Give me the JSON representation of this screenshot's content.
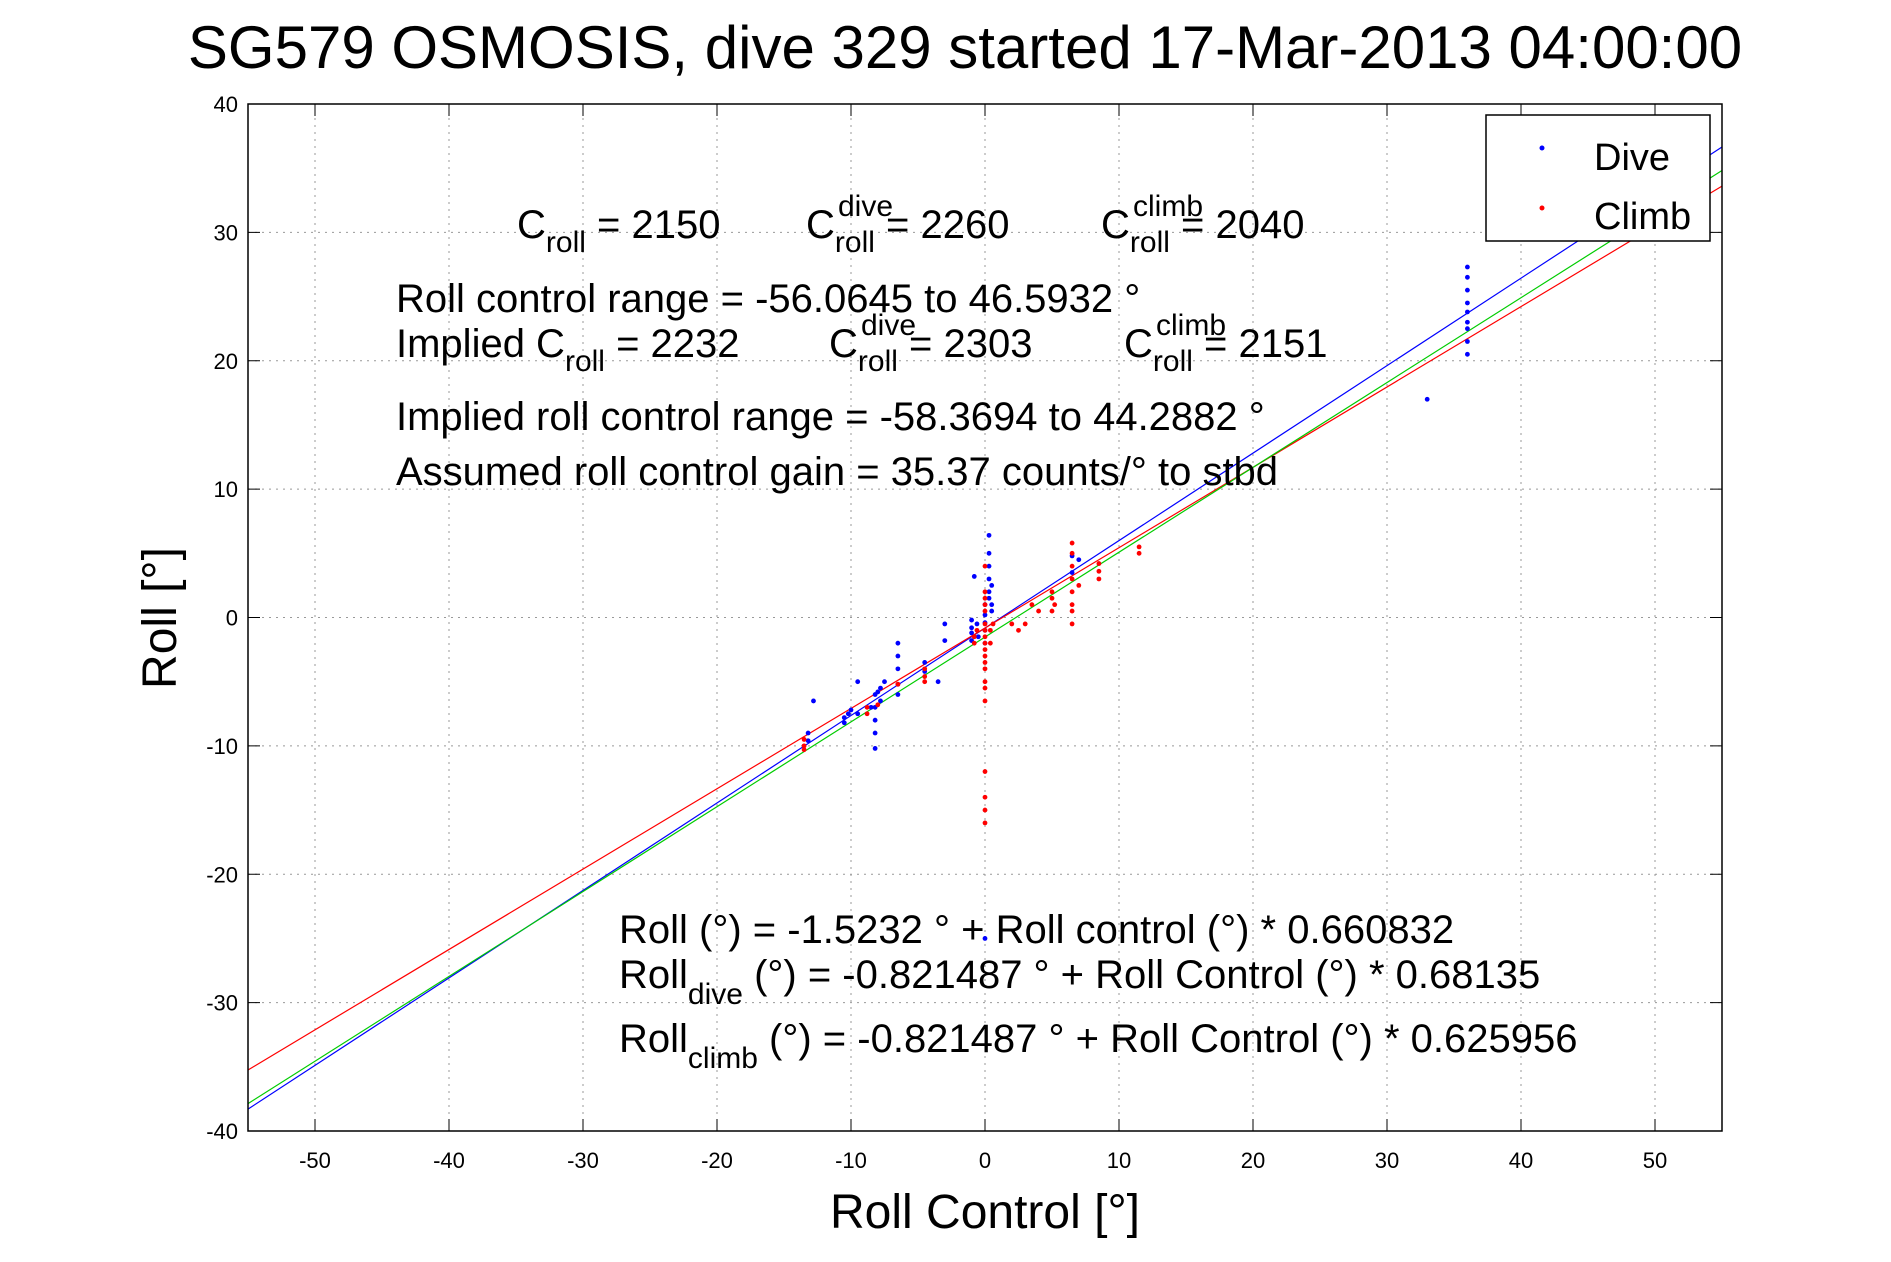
{
  "chart_data": {
    "type": "scatter",
    "title": "SG579 OSMOSIS, dive 329 started 17-Mar-2013 04:00:00",
    "xlabel": "Roll Control [°]",
    "ylabel": "Roll [°]",
    "xlim": [
      -55,
      55
    ],
    "ylim": [
      -40,
      40
    ],
    "xticks": [
      "-50",
      "-40",
      "-30",
      "-20",
      "-10",
      "0",
      "10",
      "20",
      "30",
      "40",
      "50"
    ],
    "yticks": [
      "-40",
      "-30",
      "-20",
      "-10",
      "0",
      "10",
      "20",
      "30",
      "40"
    ],
    "grid": true,
    "legend": {
      "placement": "top-right",
      "entries": [
        "Dive",
        "Climb"
      ]
    },
    "colors": {
      "dive": "#0000ff",
      "climb": "#ff0000",
      "fit_all": "#00cc00"
    },
    "series": [
      {
        "name": "Dive",
        "color": "#0000ff",
        "points": [
          [
            -13.2,
            -9.0
          ],
          [
            -13.2,
            -9.6
          ],
          [
            -12.8,
            -6.5
          ],
          [
            -10.5,
            -7.8
          ],
          [
            -10.5,
            -8.2
          ],
          [
            -10.2,
            -7.5
          ],
          [
            -10.0,
            -7.2
          ],
          [
            -9.5,
            -5.0
          ],
          [
            -9.5,
            -7.5
          ],
          [
            -8.5,
            -7.0
          ],
          [
            -8.2,
            -6.0
          ],
          [
            -8.2,
            -7.0
          ],
          [
            -8.2,
            -8.0
          ],
          [
            -8.2,
            -9.0
          ],
          [
            -8.2,
            -10.2
          ],
          [
            -8.0,
            -5.8
          ],
          [
            -7.8,
            -5.5
          ],
          [
            -7.8,
            -6.5
          ],
          [
            -7.5,
            -5.0
          ],
          [
            -6.5,
            -2.0
          ],
          [
            -6.5,
            -3.0
          ],
          [
            -6.5,
            -4.0
          ],
          [
            -6.5,
            -5.2
          ],
          [
            -6.5,
            -6.0
          ],
          [
            -4.5,
            -3.5
          ],
          [
            -4.5,
            -4.2
          ],
          [
            -3.5,
            -5.0
          ],
          [
            -3.0,
            -0.5
          ],
          [
            -3.0,
            -1.8
          ],
          [
            -1.0,
            -0.2
          ],
          [
            -1.0,
            -0.8
          ],
          [
            -1.0,
            -1.2
          ],
          [
            -1.0,
            -1.8
          ],
          [
            -0.8,
            3.2
          ],
          [
            -0.6,
            -0.5
          ],
          [
            -0.5,
            -1.5
          ],
          [
            0.0,
            1.0
          ],
          [
            0.0,
            0.2
          ],
          [
            0.0,
            -0.4
          ],
          [
            0.0,
            -1.0
          ],
          [
            0.0,
            -2.0
          ],
          [
            0.0,
            -25.0
          ],
          [
            0.3,
            6.4
          ],
          [
            0.3,
            5.0
          ],
          [
            0.3,
            4.0
          ],
          [
            0.3,
            3.0
          ],
          [
            0.3,
            2.0
          ],
          [
            0.3,
            1.5
          ],
          [
            0.5,
            1.0
          ],
          [
            0.5,
            0.5
          ],
          [
            0.5,
            2.5
          ],
          [
            6.5,
            3.5
          ],
          [
            6.5,
            4.8
          ],
          [
            7.0,
            4.5
          ],
          [
            33.0,
            17.0
          ],
          [
            36.0,
            20.5
          ],
          [
            36.0,
            21.5
          ],
          [
            36.0,
            22.5
          ],
          [
            36.0,
            23.0
          ],
          [
            36.0,
            23.8
          ],
          [
            36.0,
            24.5
          ],
          [
            36.0,
            25.5
          ],
          [
            36.0,
            26.5
          ],
          [
            36.0,
            27.3
          ]
        ]
      },
      {
        "name": "Climb",
        "color": "#ff0000",
        "points": [
          [
            -13.5,
            -10.3
          ],
          [
            -13.5,
            -10.0
          ],
          [
            -13.5,
            -9.5
          ],
          [
            -8.8,
            -7.0
          ],
          [
            -8.8,
            -7.5
          ],
          [
            -8.0,
            -6.8
          ],
          [
            -6.5,
            -5.2
          ],
          [
            -4.5,
            -4.6
          ],
          [
            -4.5,
            -5.0
          ],
          [
            -4.5,
            -4.0
          ],
          [
            -0.8,
            -1.5
          ],
          [
            -0.8,
            -2.0
          ],
          [
            -0.6,
            -1.0
          ],
          [
            0.0,
            4.0
          ],
          [
            0.0,
            2.0
          ],
          [
            0.0,
            1.5
          ],
          [
            0.0,
            1.0
          ],
          [
            0.0,
            0.5
          ],
          [
            0.0,
            -0.5
          ],
          [
            0.0,
            -1.0
          ],
          [
            0.0,
            -1.5
          ],
          [
            0.0,
            -2.0
          ],
          [
            0.0,
            -2.5
          ],
          [
            0.0,
            -3.0
          ],
          [
            0.0,
            -3.5
          ],
          [
            0.0,
            -4.0
          ],
          [
            0.0,
            -5.0
          ],
          [
            0.0,
            -5.5
          ],
          [
            0.0,
            -6.5
          ],
          [
            0.0,
            -12.0
          ],
          [
            0.0,
            -14.0
          ],
          [
            0.0,
            -15.0
          ],
          [
            0.0,
            -16.0
          ],
          [
            0.4,
            -1.0
          ],
          [
            0.4,
            -2.0
          ],
          [
            0.6,
            -0.5
          ],
          [
            2.0,
            -0.5
          ],
          [
            2.5,
            -1.0
          ],
          [
            3.0,
            -0.5
          ],
          [
            3.5,
            1.0
          ],
          [
            4.0,
            0.5
          ],
          [
            5.0,
            0.5
          ],
          [
            5.0,
            1.5
          ],
          [
            5.0,
            2.0
          ],
          [
            5.2,
            1.0
          ],
          [
            6.5,
            5.8
          ],
          [
            6.5,
            5.0
          ],
          [
            6.5,
            4.0
          ],
          [
            6.5,
            3.0
          ],
          [
            6.5,
            2.0
          ],
          [
            6.5,
            1.0
          ],
          [
            6.5,
            0.5
          ],
          [
            6.5,
            -0.5
          ],
          [
            7.0,
            2.5
          ],
          [
            8.5,
            3.0
          ],
          [
            8.5,
            3.6
          ],
          [
            8.5,
            4.2
          ],
          [
            11.5,
            5.0
          ],
          [
            11.5,
            5.5
          ]
        ]
      }
    ],
    "fit_lines": [
      {
        "color": "#0000ff",
        "intercept": -0.821487,
        "slope": 0.68135
      },
      {
        "color": "#ff0000",
        "intercept": -0.821487,
        "slope": 0.625956
      },
      {
        "color": "#00cc00",
        "intercept": -1.5232,
        "slope": 0.660832
      }
    ]
  },
  "annotations": {
    "c_roll_line": {
      "c1": "C",
      "s1": "roll",
      "v1": " = 2150",
      "c2": "C",
      "sup2": "dive",
      "s2": "roll",
      "v2": " = 2260",
      "c3": "C",
      "sup3": "climb",
      "s3": "roll",
      "v3": " = 2040"
    },
    "range_line": "Roll control range = -56.0645 to 46.5932 °",
    "implied_line": {
      "pre": "Implied C",
      "s1": "roll",
      "v1": " = 2232",
      "c2": "C",
      "sup2": "dive",
      "s2": "roll",
      "v2": " = 2303",
      "c3": "C",
      "sup3": "climb",
      "s3": "roll",
      "v3": " = 2151"
    },
    "implied_range_line": "Implied roll control range = -58.3694 to 44.2882 °",
    "gain_line": "Assumed roll control gain = 35.37 counts/° to stbd",
    "fit_all": "Roll (°) = -1.5232 ° + Roll control (°) * 0.660832",
    "fit_dive": {
      "pre": "Roll",
      "sub": "dive",
      "post": " (°) = -0.821487 ° + Roll Control (°) * 0.68135"
    },
    "fit_climb": {
      "pre": "Roll",
      "sub": "climb",
      "post": " (°) = -0.821487 ° + Roll Control (°) * 0.625956"
    }
  }
}
